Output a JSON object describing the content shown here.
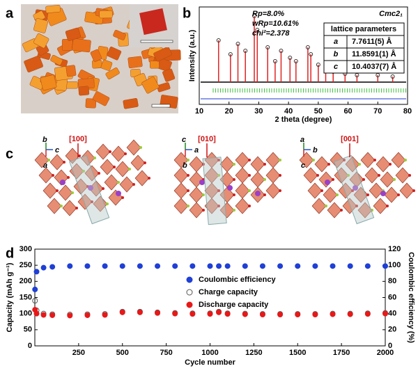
{
  "panels": [
    "a",
    "b",
    "c",
    "d"
  ],
  "panel_c": {
    "views": [
      {
        "direction": "[100]",
        "axes": [
          "b",
          "c",
          "a"
        ]
      },
      {
        "direction": "[010]",
        "axes": [
          "c",
          "a",
          "b"
        ]
      },
      {
        "direction": "[001]",
        "axes": [
          "a",
          "b",
          "c"
        ]
      }
    ]
  },
  "chart_data": [
    {
      "type": "stem",
      "xlabel": "2 theta (degree)",
      "ylabel": "Intensity (a.u.)",
      "space_group": "Cmc2₁",
      "annotations": [
        "Rp=8.0%",
        "wRp=10.61%",
        "chi²=2.378"
      ],
      "table": {
        "header": "lattice parameters",
        "rows": [
          [
            "a",
            "7.7611(5) Å"
          ],
          [
            "b",
            "11.8591(1) Å"
          ],
          [
            "c",
            "10.4037(7) Å"
          ]
        ]
      },
      "x": [
        16.5,
        20.5,
        23.0,
        25.5,
        28.5,
        29.5,
        33.0,
        35.5,
        37.5,
        40.5,
        42.5,
        46.5,
        47.5,
        50.0,
        52.5,
        55.0,
        59.0,
        63.0,
        70.0,
        75.0
      ],
      "series": [
        {
          "color": "#e02020",
          "values": [
            60,
            40,
            55,
            45,
            95,
            75,
            50,
            30,
            45,
            35,
            30,
            50,
            40,
            25,
            20,
            15,
            12,
            10,
            10,
            8
          ]
        }
      ],
      "xlim": [
        10,
        80
      ],
      "xticks": [
        10,
        20,
        30,
        40,
        50,
        60,
        70,
        80
      ],
      "ylim": [
        0,
        100
      ]
    },
    {
      "type": "scatter",
      "xlabel": "Cycle number",
      "ylabel": "Capacity (mAh g⁻¹)",
      "y2label": "Coulombic efficiency (%)",
      "x": [
        1,
        10,
        50,
        100,
        200,
        300,
        400,
        500,
        600,
        700,
        800,
        900,
        1000,
        1050,
        1100,
        1200,
        1300,
        1400,
        1500,
        1600,
        1700,
        1800,
        1900,
        2000
      ],
      "series": [
        {
          "name": "Coulombic efficiency",
          "color": "#1f3fd6",
          "axis": "y2",
          "values": [
            70,
            92,
            97,
            98,
            99,
            99,
            99,
            99,
            99,
            99,
            99,
            99,
            99,
            99,
            99,
            99,
            99,
            99,
            99,
            99,
            99,
            99,
            99,
            99
          ]
        },
        {
          "name": "Charge capacity",
          "color": "#555555",
          "values": [
            140,
            110,
            100,
            98,
            97,
            98,
            99,
            106,
            106,
            104,
            102,
            101,
            101,
            106,
            101,
            100,
            99,
            99,
            99,
            99,
            100,
            100,
            101,
            102
          ]
        },
        {
          "name": "Discharge capacity",
          "color": "#e81818",
          "values": [
            112,
            100,
            96,
            95,
            94,
            95,
            96,
            104,
            104,
            102,
            100,
            99,
            99,
            104,
            99,
            98,
            97,
            97,
            97,
            97,
            98,
            98,
            99,
            100
          ]
        }
      ],
      "xlim": [
        0,
        2000
      ],
      "xticks": [
        250,
        500,
        750,
        1000,
        1250,
        1500,
        1750,
        2000
      ],
      "ylim": [
        0,
        300
      ],
      "yticks": [
        0,
        50,
        100,
        150,
        200,
        250,
        300
      ],
      "y2lim": [
        0,
        120
      ],
      "y2ticks": [
        0,
        20,
        40,
        60,
        80,
        100,
        120
      ]
    }
  ]
}
